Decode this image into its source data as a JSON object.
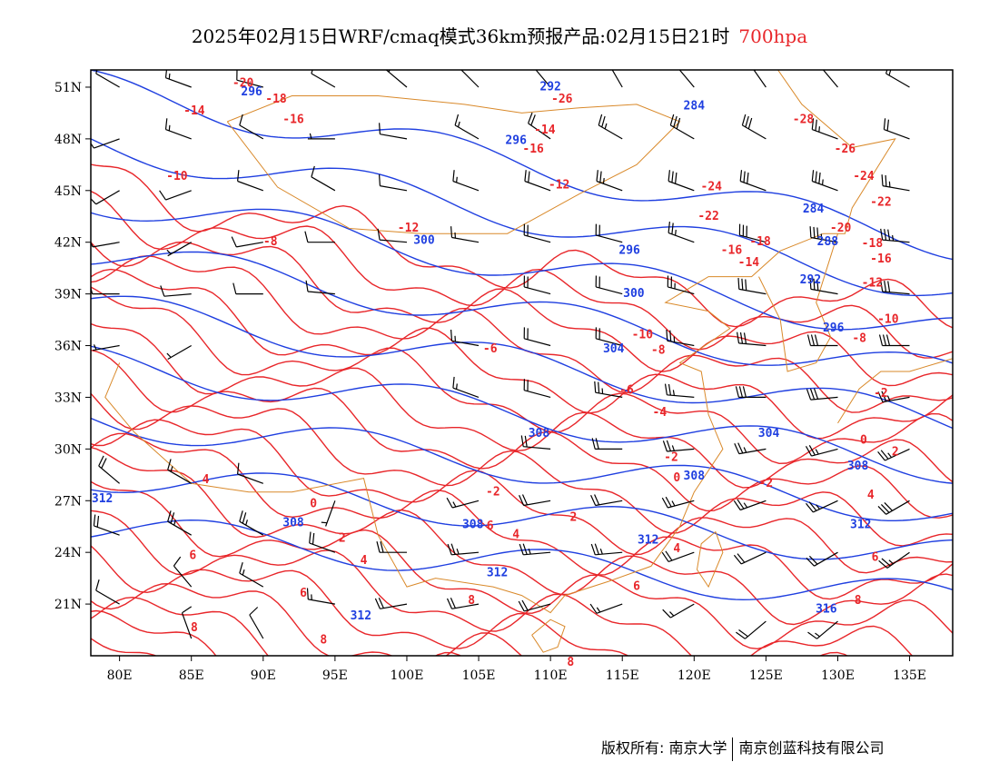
{
  "title": {
    "main": "2025年02月15日WRF/cmaq模式36km预报产品:02月15日21时",
    "level": "700hpa",
    "level_color": "#e8262a"
  },
  "map": {
    "lon_ticks": [
      "80E",
      "85E",
      "90E",
      "95E",
      "100E",
      "105E",
      "110E",
      "115E",
      "120E",
      "125E",
      "130E",
      "135E"
    ],
    "lat_ticks": [
      "51N",
      "48N",
      "45N",
      "42N",
      "39N",
      "36N",
      "33N",
      "30N",
      "27N",
      "24N",
      "21N"
    ],
    "temperature_contour_color": "#e8262a",
    "height_contour_color": "#1f3fe0",
    "boundary_color": "#d9892a",
    "temperature_labels": [
      {
        "text": "-20",
        "lon": 88.6,
        "lat": 51.2
      },
      {
        "text": "-18",
        "lon": 90.9,
        "lat": 50.3
      },
      {
        "text": "-14",
        "lon": 85.2,
        "lat": 49.6
      },
      {
        "text": "-16",
        "lon": 92.1,
        "lat": 49.1
      },
      {
        "text": "-16",
        "lon": 108.8,
        "lat": 47.4
      },
      {
        "text": "-14",
        "lon": 109.6,
        "lat": 48.5
      },
      {
        "text": "-10",
        "lon": 84.0,
        "lat": 45.8
      },
      {
        "text": "-12",
        "lon": 110.6,
        "lat": 45.3
      },
      {
        "text": "-12",
        "lon": 100.1,
        "lat": 42.8
      },
      {
        "text": "-8",
        "lon": 90.5,
        "lat": 42.0
      },
      {
        "text": "-26",
        "lon": 110.8,
        "lat": 50.3
      },
      {
        "text": "-28",
        "lon": 127.6,
        "lat": 49.1
      },
      {
        "text": "-26",
        "lon": 130.5,
        "lat": 47.4
      },
      {
        "text": "-24",
        "lon": 121.2,
        "lat": 45.2
      },
      {
        "text": "-22",
        "lon": 121.0,
        "lat": 43.5
      },
      {
        "text": "-24",
        "lon": 131.8,
        "lat": 45.8
      },
      {
        "text": "-22",
        "lon": 133.0,
        "lat": 44.3
      },
      {
        "text": "-20",
        "lon": 130.2,
        "lat": 42.8
      },
      {
        "text": "-18",
        "lon": 132.4,
        "lat": 41.9
      },
      {
        "text": "-16",
        "lon": 122.6,
        "lat": 41.5
      },
      {
        "text": "-18",
        "lon": 124.6,
        "lat": 42.0
      },
      {
        "text": "-14",
        "lon": 123.8,
        "lat": 40.8
      },
      {
        "text": "-16",
        "lon": 133.0,
        "lat": 41.0
      },
      {
        "text": "-12",
        "lon": 132.4,
        "lat": 39.6
      },
      {
        "text": "-10",
        "lon": 133.5,
        "lat": 37.5
      },
      {
        "text": "-8",
        "lon": 131.5,
        "lat": 36.4
      },
      {
        "text": "-10",
        "lon": 116.4,
        "lat": 36.6
      },
      {
        "text": "-8",
        "lon": 117.5,
        "lat": 35.7
      },
      {
        "text": "-6",
        "lon": 115.3,
        "lat": 33.4
      },
      {
        "text": "-4",
        "lon": 117.6,
        "lat": 32.1
      },
      {
        "text": "-2",
        "lon": 118.4,
        "lat": 29.5
      },
      {
        "text": "-2",
        "lon": 125.0,
        "lat": 28.0
      },
      {
        "text": "0",
        "lon": 118.8,
        "lat": 28.3
      },
      {
        "text": "0",
        "lon": 131.8,
        "lat": 30.5
      },
      {
        "text": "2",
        "lon": 134.0,
        "lat": 29.8
      },
      {
        "text": "-2",
        "lon": 133.0,
        "lat": 33.2
      },
      {
        "text": "-6",
        "lon": 105.8,
        "lat": 35.8
      },
      {
        "text": "-2",
        "lon": 106.0,
        "lat": 27.5
      },
      {
        "text": "4",
        "lon": 86.0,
        "lat": 28.2
      },
      {
        "text": "0",
        "lon": 93.5,
        "lat": 26.8
      },
      {
        "text": "2",
        "lon": 95.5,
        "lat": 24.8
      },
      {
        "text": "4",
        "lon": 97.0,
        "lat": 23.5
      },
      {
        "text": "2",
        "lon": 111.6,
        "lat": 26.0
      },
      {
        "text": "4",
        "lon": 107.6,
        "lat": 25.0
      },
      {
        "text": "6",
        "lon": 105.8,
        "lat": 25.5
      },
      {
        "text": "4",
        "lon": 118.8,
        "lat": 24.2
      },
      {
        "text": "6",
        "lon": 85.1,
        "lat": 23.8
      },
      {
        "text": "6",
        "lon": 92.8,
        "lat": 21.6
      },
      {
        "text": "8",
        "lon": 85.2,
        "lat": 19.6
      },
      {
        "text": "8",
        "lon": 94.2,
        "lat": 18.9
      },
      {
        "text": "8",
        "lon": 104.5,
        "lat": 21.2
      },
      {
        "text": "6",
        "lon": 116.0,
        "lat": 22.0
      },
      {
        "text": "8",
        "lon": 131.4,
        "lat": 21.2
      },
      {
        "text": "6",
        "lon": 132.6,
        "lat": 23.7
      },
      {
        "text": "4",
        "lon": 132.3,
        "lat": 27.3
      },
      {
        "text": "8",
        "lon": 111.4,
        "lat": 17.6
      }
    ],
    "height_labels": [
      {
        "text": "296",
        "lon": 89.2,
        "lat": 50.7
      },
      {
        "text": "292",
        "lon": 110.0,
        "lat": 51.0
      },
      {
        "text": "284",
        "lon": 120.0,
        "lat": 49.9
      },
      {
        "text": "296",
        "lon": 107.6,
        "lat": 47.9
      },
      {
        "text": "300",
        "lon": 101.2,
        "lat": 42.1
      },
      {
        "text": "296",
        "lon": 115.5,
        "lat": 41.5
      },
      {
        "text": "300",
        "lon": 115.8,
        "lat": 39.0
      },
      {
        "text": "284",
        "lon": 128.3,
        "lat": 43.9
      },
      {
        "text": "288",
        "lon": 129.3,
        "lat": 42.0
      },
      {
        "text": "292",
        "lon": 128.1,
        "lat": 39.8
      },
      {
        "text": "296",
        "lon": 129.7,
        "lat": 37.0
      },
      {
        "text": "304",
        "lon": 114.4,
        "lat": 35.8
      },
      {
        "text": "304",
        "lon": 125.2,
        "lat": 30.9
      },
      {
        "text": "308",
        "lon": 109.2,
        "lat": 30.9
      },
      {
        "text": "308",
        "lon": 120.0,
        "lat": 28.4
      },
      {
        "text": "308",
        "lon": 131.4,
        "lat": 29.0
      },
      {
        "text": "312",
        "lon": 116.8,
        "lat": 24.7
      },
      {
        "text": "312",
        "lon": 131.6,
        "lat": 25.6
      },
      {
        "text": "312",
        "lon": 106.3,
        "lat": 22.8
      },
      {
        "text": "312",
        "lon": 96.8,
        "lat": 20.3
      },
      {
        "text": "316",
        "lon": 129.2,
        "lat": 20.7
      },
      {
        "text": "308",
        "lon": 92.1,
        "lat": 25.7
      },
      {
        "text": "312",
        "lon": 78.8,
        "lat": 27.1
      },
      {
        "text": "308",
        "lon": 104.6,
        "lat": 25.6
      }
    ],
    "wind_barbs": [
      {
        "lon": 80,
        "lat": 51,
        "dir": 300,
        "spd": 10
      },
      {
        "lon": 85,
        "lat": 51,
        "dir": 290,
        "spd": 15
      },
      {
        "lon": 90,
        "lat": 51,
        "dir": 285,
        "spd": 10
      },
      {
        "lon": 95,
        "lat": 51,
        "dir": 300,
        "spd": 10
      },
      {
        "lon": 100,
        "lat": 51,
        "dir": 310,
        "spd": 15
      },
      {
        "lon": 105,
        "lat": 51,
        "dir": 315,
        "spd": 20
      },
      {
        "lon": 110,
        "lat": 51,
        "dir": 320,
        "spd": 20
      },
      {
        "lon": 115,
        "lat": 51,
        "dir": 330,
        "spd": 15
      },
      {
        "lon": 120,
        "lat": 51,
        "dir": 320,
        "spd": 20
      },
      {
        "lon": 125,
        "lat": 51,
        "dir": 325,
        "spd": 25
      },
      {
        "lon": 130,
        "lat": 51,
        "dir": 320,
        "spd": 20
      },
      {
        "lon": 135,
        "lat": 51,
        "dir": 300,
        "spd": 15
      },
      {
        "lon": 80,
        "lat": 48,
        "dir": 250,
        "spd": 10
      },
      {
        "lon": 85,
        "lat": 48,
        "dir": 290,
        "spd": 15
      },
      {
        "lon": 90,
        "lat": 48,
        "dir": 300,
        "spd": 10
      },
      {
        "lon": 95,
        "lat": 48,
        "dir": 270,
        "spd": 5
      },
      {
        "lon": 100,
        "lat": 48,
        "dir": 280,
        "spd": 10
      },
      {
        "lon": 105,
        "lat": 48,
        "dir": 300,
        "spd": 15
      },
      {
        "lon": 110,
        "lat": 48,
        "dir": 305,
        "spd": 20
      },
      {
        "lon": 115,
        "lat": 48,
        "dir": 300,
        "spd": 25
      },
      {
        "lon": 120,
        "lat": 48,
        "dir": 300,
        "spd": 30
      },
      {
        "lon": 125,
        "lat": 48,
        "dir": 300,
        "spd": 30
      },
      {
        "lon": 130,
        "lat": 48,
        "dir": 290,
        "spd": 25
      },
      {
        "lon": 135,
        "lat": 48,
        "dir": 290,
        "spd": 20
      },
      {
        "lon": 80,
        "lat": 45,
        "dir": 240,
        "spd": 10
      },
      {
        "lon": 85,
        "lat": 45,
        "dir": 250,
        "spd": 10
      },
      {
        "lon": 90,
        "lat": 45,
        "dir": 290,
        "spd": 10
      },
      {
        "lon": 95,
        "lat": 45,
        "dir": 300,
        "spd": 10
      },
      {
        "lon": 100,
        "lat": 45,
        "dir": 280,
        "spd": 10
      },
      {
        "lon": 105,
        "lat": 45,
        "dir": 290,
        "spd": 15
      },
      {
        "lon": 110,
        "lat": 45,
        "dir": 290,
        "spd": 20
      },
      {
        "lon": 115,
        "lat": 45,
        "dir": 290,
        "spd": 25
      },
      {
        "lon": 120,
        "lat": 45,
        "dir": 290,
        "spd": 30
      },
      {
        "lon": 125,
        "lat": 45,
        "dir": 290,
        "spd": 30
      },
      {
        "lon": 130,
        "lat": 45,
        "dir": 290,
        "spd": 35
      },
      {
        "lon": 135,
        "lat": 45,
        "dir": 280,
        "spd": 25
      },
      {
        "lon": 80,
        "lat": 42,
        "dir": 260,
        "spd": 10
      },
      {
        "lon": 85,
        "lat": 42,
        "dir": 240,
        "spd": 5
      },
      {
        "lon": 90,
        "lat": 42,
        "dir": 260,
        "spd": 10
      },
      {
        "lon": 95,
        "lat": 42,
        "dir": 270,
        "spd": 10
      },
      {
        "lon": 100,
        "lat": 42,
        "dir": 275,
        "spd": 10
      },
      {
        "lon": 105,
        "lat": 42,
        "dir": 280,
        "spd": 15
      },
      {
        "lon": 110,
        "lat": 42,
        "dir": 285,
        "spd": 20
      },
      {
        "lon": 115,
        "lat": 42,
        "dir": 285,
        "spd": 20
      },
      {
        "lon": 120,
        "lat": 42,
        "dir": 290,
        "spd": 25
      },
      {
        "lon": 125,
        "lat": 42,
        "dir": 285,
        "spd": 30
      },
      {
        "lon": 130,
        "lat": 42,
        "dir": 280,
        "spd": 35
      },
      {
        "lon": 135,
        "lat": 42,
        "dir": 275,
        "spd": 35
      },
      {
        "lon": 80,
        "lat": 39,
        "dir": 270,
        "spd": 10
      },
      {
        "lon": 85,
        "lat": 39,
        "dir": 265,
        "spd": 10
      },
      {
        "lon": 90,
        "lat": 39,
        "dir": 270,
        "spd": 10
      },
      {
        "lon": 95,
        "lat": 39,
        "dir": 275,
        "spd": 10
      },
      {
        "lon": 110,
        "lat": 39,
        "dir": 285,
        "spd": 20
      },
      {
        "lon": 115,
        "lat": 39,
        "dir": 285,
        "spd": 20
      },
      {
        "lon": 120,
        "lat": 39,
        "dir": 285,
        "spd": 25
      },
      {
        "lon": 125,
        "lat": 39,
        "dir": 280,
        "spd": 30
      },
      {
        "lon": 130,
        "lat": 39,
        "dir": 280,
        "spd": 30
      },
      {
        "lon": 135,
        "lat": 39,
        "dir": 275,
        "spd": 30
      },
      {
        "lon": 80,
        "lat": 36,
        "dir": 260,
        "spd": 5
      },
      {
        "lon": 85,
        "lat": 36,
        "dir": 240,
        "spd": 5
      },
      {
        "lon": 105,
        "lat": 36,
        "dir": 280,
        "spd": 15
      },
      {
        "lon": 110,
        "lat": 36,
        "dir": 285,
        "spd": 20
      },
      {
        "lon": 115,
        "lat": 36,
        "dir": 285,
        "spd": 20
      },
      {
        "lon": 120,
        "lat": 36,
        "dir": 280,
        "spd": 25
      },
      {
        "lon": 125,
        "lat": 36,
        "dir": 275,
        "spd": 30
      },
      {
        "lon": 130,
        "lat": 36,
        "dir": 270,
        "spd": 30
      },
      {
        "lon": 135,
        "lat": 36,
        "dir": 270,
        "spd": 30
      },
      {
        "lon": 105,
        "lat": 33,
        "dir": 290,
        "spd": 15
      },
      {
        "lon": 110,
        "lat": 33,
        "dir": 285,
        "spd": 20
      },
      {
        "lon": 115,
        "lat": 33,
        "dir": 280,
        "spd": 25
      },
      {
        "lon": 120,
        "lat": 33,
        "dir": 275,
        "spd": 25
      },
      {
        "lon": 125,
        "lat": 33,
        "dir": 270,
        "spd": 30
      },
      {
        "lon": 130,
        "lat": 33,
        "dir": 265,
        "spd": 30
      },
      {
        "lon": 135,
        "lat": 33,
        "dir": 260,
        "spd": 25
      },
      {
        "lon": 110,
        "lat": 30,
        "dir": 275,
        "spd": 20
      },
      {
        "lon": 115,
        "lat": 30,
        "dir": 270,
        "spd": 20
      },
      {
        "lon": 120,
        "lat": 30,
        "dir": 265,
        "spd": 25
      },
      {
        "lon": 125,
        "lat": 30,
        "dir": 260,
        "spd": 25
      },
      {
        "lon": 130,
        "lat": 30,
        "dir": 255,
        "spd": 25
      },
      {
        "lon": 135,
        "lat": 30,
        "dir": 245,
        "spd": 25
      },
      {
        "lon": 80,
        "lat": 28,
        "dir": 310,
        "spd": 20
      },
      {
        "lon": 85,
        "lat": 28,
        "dir": 300,
        "spd": 15
      },
      {
        "lon": 90,
        "lat": 28,
        "dir": 290,
        "spd": 10
      },
      {
        "lon": 95,
        "lat": 27,
        "dir": 200,
        "spd": 5
      },
      {
        "lon": 105,
        "lat": 27,
        "dir": 255,
        "spd": 15
      },
      {
        "lon": 110,
        "lat": 27,
        "dir": 260,
        "spd": 20
      },
      {
        "lon": 115,
        "lat": 27,
        "dir": 260,
        "spd": 20
      },
      {
        "lon": 120,
        "lat": 27,
        "dir": 255,
        "spd": 25
      },
      {
        "lon": 125,
        "lat": 27,
        "dir": 250,
        "spd": 25
      },
      {
        "lon": 130,
        "lat": 27,
        "dir": 245,
        "spd": 25
      },
      {
        "lon": 135,
        "lat": 27,
        "dir": 240,
        "spd": 30
      },
      {
        "lon": 80,
        "lat": 25,
        "dir": 290,
        "spd": 20
      },
      {
        "lon": 85,
        "lat": 25,
        "dir": 300,
        "spd": 25
      },
      {
        "lon": 90,
        "lat": 25,
        "dir": 300,
        "spd": 25
      },
      {
        "lon": 95,
        "lat": 24,
        "dir": 290,
        "spd": 20
      },
      {
        "lon": 100,
        "lat": 24,
        "dir": 270,
        "spd": 20
      },
      {
        "lon": 105,
        "lat": 24,
        "dir": 265,
        "spd": 25
      },
      {
        "lon": 110,
        "lat": 24,
        "dir": 265,
        "spd": 25
      },
      {
        "lon": 115,
        "lat": 24,
        "dir": 265,
        "spd": 25
      },
      {
        "lon": 120,
        "lat": 24,
        "dir": 250,
        "spd": 20
      },
      {
        "lon": 125,
        "lat": 24,
        "dir": 245,
        "spd": 20
      },
      {
        "lon": 130,
        "lat": 24,
        "dir": 240,
        "spd": 20
      },
      {
        "lon": 135,
        "lat": 24,
        "dir": 235,
        "spd": 25
      },
      {
        "lon": 80,
        "lat": 21,
        "dir": 300,
        "spd": 10
      },
      {
        "lon": 85,
        "lat": 22,
        "dir": 320,
        "spd": 10
      },
      {
        "lon": 90,
        "lat": 22,
        "dir": 300,
        "spd": 15
      },
      {
        "lon": 95,
        "lat": 21,
        "dir": 280,
        "spd": 15
      },
      {
        "lon": 100,
        "lat": 21,
        "dir": 260,
        "spd": 20
      },
      {
        "lon": 105,
        "lat": 21,
        "dir": 260,
        "spd": 20
      },
      {
        "lon": 110,
        "lat": 21,
        "dir": 255,
        "spd": 20
      },
      {
        "lon": 115,
        "lat": 21,
        "dir": 250,
        "spd": 15
      },
      {
        "lon": 120,
        "lat": 21,
        "dir": 240,
        "spd": 15
      },
      {
        "lon": 125,
        "lat": 20,
        "dir": 230,
        "spd": 20
      },
      {
        "lon": 130,
        "lat": 20,
        "dir": 230,
        "spd": 15
      },
      {
        "lon": 85,
        "lat": 19,
        "dir": 340,
        "spd": 10
      },
      {
        "lon": 90,
        "lat": 19,
        "dir": 330,
        "spd": 10
      }
    ]
  },
  "footer": {
    "copyright": "版权所有: 南京大学",
    "company": "南京创蓝科技有限公司"
  }
}
